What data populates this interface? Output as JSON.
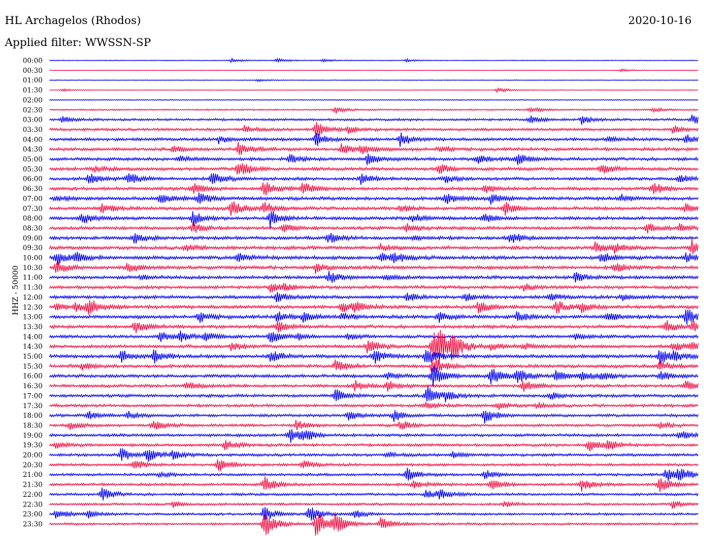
{
  "header": {
    "station": "HL Archagelos (Rhodos)",
    "date": "2020-10-16",
    "filter": "Applied filter: WWSSN-SP"
  },
  "chart_data": {
    "type": "line",
    "title": "HL Archagelos (Rhodos)",
    "subtitle": "Applied filter: WWSSN-SP",
    "date": "2020-10-16",
    "ylabel": "HHZ - 50000",
    "xlabel": "",
    "grid": false,
    "legend": "none",
    "row_labels": [
      "00:00",
      "00:30",
      "01:00",
      "01:30",
      "02:00",
      "02:30",
      "03:00",
      "03:30",
      "04:00",
      "04:30",
      "05:00",
      "05:30",
      "06:00",
      "06:30",
      "07:00",
      "07:30",
      "08:00",
      "08:30",
      "09:00",
      "09:30",
      "10:00",
      "10:30",
      "11:00",
      "11:30",
      "12:00",
      "12:30",
      "13:00",
      "13:30",
      "14:00",
      "14:30",
      "15:00",
      "15:30",
      "16:00",
      "16:30",
      "17:00",
      "17:30",
      "18:00",
      "18:30",
      "19:00",
      "19:30",
      "20:00",
      "20:30",
      "21:00",
      "21:30",
      "22:00",
      "22:30",
      "23:00",
      "23:30"
    ],
    "trace_colors": [
      "#0000ee",
      "#ee1144"
    ],
    "noise_levels": [
      0.6,
      0.4,
      0.5,
      0.4,
      0.7,
      1.2,
      1.8,
      2.2,
      2.4,
      2.5,
      2.5,
      2.6,
      2.5,
      2.6,
      2.6,
      2.6,
      2.6,
      2.6,
      2.6,
      2.7,
      2.8,
      2.8,
      2.6,
      2.5,
      2.6,
      2.7,
      2.7,
      2.6,
      2.4,
      2.6,
      2.7,
      2.6,
      2.5,
      2.4,
      2.4,
      2.3,
      2.2,
      2.2,
      2.3,
      2.2,
      2.2,
      2.1,
      2.1,
      2.1,
      2.0,
      1.9,
      1.9,
      1.8
    ],
    "events": [
      [
        [
          0.28,
          3
        ],
        [
          0.35,
          3
        ],
        [
          0.42,
          2
        ],
        [
          0.55,
          2
        ]
      ],
      [
        [
          0.88,
          2
        ]
      ],
      [
        [
          0.32,
          2
        ]
      ],
      [
        [
          0.02,
          2
        ],
        [
          0.69,
          4
        ]
      ],
      [],
      [
        [
          0.44,
          5
        ],
        [
          0.74,
          4
        ],
        [
          0.93,
          3
        ]
      ],
      [
        [
          0.02,
          4
        ],
        [
          0.74,
          6
        ],
        [
          0.82,
          6
        ],
        [
          0.99,
          7
        ]
      ],
      [
        [
          0.3,
          5
        ],
        [
          0.41,
          12
        ],
        [
          0.46,
          5
        ],
        [
          0.96,
          6
        ]
      ],
      [
        [
          0.26,
          6
        ],
        [
          0.41,
          10
        ],
        [
          0.54,
          9
        ],
        [
          0.86,
          4
        ],
        [
          0.98,
          7
        ]
      ],
      [
        [
          0.19,
          4
        ],
        [
          0.29,
          10
        ],
        [
          0.45,
          8
        ],
        [
          0.48,
          7
        ],
        [
          0.6,
          4
        ]
      ],
      [
        [
          0.2,
          4
        ],
        [
          0.37,
          6
        ],
        [
          0.49,
          10
        ],
        [
          0.66,
          7
        ],
        [
          0.72,
          9
        ]
      ],
      [
        [
          0.07,
          3
        ],
        [
          0.29,
          14
        ],
        [
          0.6,
          8
        ],
        [
          0.85,
          7
        ]
      ],
      [
        [
          0.06,
          8
        ],
        [
          0.12,
          9
        ],
        [
          0.25,
          9
        ],
        [
          0.48,
          8
        ],
        [
          0.61,
          5
        ],
        [
          0.97,
          5
        ]
      ],
      [
        [
          0.22,
          8
        ],
        [
          0.33,
          11
        ],
        [
          0.39,
          9
        ],
        [
          0.67,
          7
        ],
        [
          0.93,
          10
        ]
      ],
      [
        [
          0.01,
          4
        ],
        [
          0.17,
          8
        ],
        [
          0.23,
          9
        ],
        [
          0.61,
          8
        ],
        [
          0.68,
          7
        ],
        [
          0.88,
          6
        ]
      ],
      [
        [
          0.08,
          8
        ],
        [
          0.28,
          12
        ],
        [
          0.33,
          9
        ],
        [
          0.54,
          5
        ],
        [
          0.7,
          10
        ],
        [
          0.98,
          6
        ]
      ],
      [
        [
          0.05,
          8
        ],
        [
          0.22,
          11
        ],
        [
          0.34,
          12
        ],
        [
          0.56,
          7
        ],
        [
          0.67,
          6
        ]
      ],
      [
        [
          0.22,
          7
        ],
        [
          0.36,
          6
        ],
        [
          0.55,
          6
        ],
        [
          0.92,
          7
        ],
        [
          0.97,
          5
        ]
      ],
      [
        [
          0.13,
          8
        ],
        [
          0.43,
          8
        ],
        [
          0.56,
          3
        ],
        [
          0.71,
          9
        ]
      ],
      [
        [
          0.21,
          6
        ],
        [
          0.51,
          5
        ],
        [
          0.84,
          9
        ],
        [
          0.87,
          7
        ],
        [
          0.99,
          12
        ]
      ],
      [
        [
          0.01,
          10
        ],
        [
          0.04,
          6
        ],
        [
          0.29,
          8
        ],
        [
          0.51,
          8
        ],
        [
          0.53,
          6
        ],
        [
          0.85,
          8
        ],
        [
          0.98,
          7
        ]
      ],
      [
        [
          0.01,
          9
        ],
        [
          0.12,
          7
        ],
        [
          0.41,
          7
        ],
        [
          0.87,
          8
        ]
      ],
      [
        [
          0.14,
          3
        ],
        [
          0.43,
          9
        ],
        [
          0.52,
          3
        ],
        [
          0.81,
          9
        ]
      ],
      [
        [
          0.34,
          7
        ],
        [
          0.36,
          5
        ],
        [
          0.73,
          5
        ]
      ],
      [
        [
          0.35,
          7
        ],
        [
          0.55,
          7
        ],
        [
          0.64,
          5
        ],
        [
          0.77,
          5
        ],
        [
          0.88,
          5
        ]
      ],
      [
        [
          0.01,
          5
        ],
        [
          0.04,
          7
        ],
        [
          0.06,
          12
        ],
        [
          0.45,
          7
        ],
        [
          0.47,
          8
        ],
        [
          0.66,
          10
        ],
        [
          0.78,
          10
        ],
        [
          0.82,
          7
        ]
      ],
      [
        [
          0.23,
          8
        ],
        [
          0.35,
          7
        ],
        [
          0.39,
          7
        ],
        [
          0.45,
          5
        ],
        [
          0.6,
          8
        ],
        [
          0.72,
          7
        ],
        [
          0.86,
          7
        ],
        [
          0.98,
          12
        ]
      ],
      [
        [
          0.13,
          10
        ],
        [
          0.35,
          8
        ],
        [
          0.95,
          9
        ],
        [
          0.99,
          8
        ]
      ],
      [
        [
          0.17,
          8
        ],
        [
          0.2,
          7
        ],
        [
          0.24,
          9
        ],
        [
          0.34,
          9
        ],
        [
          0.38,
          4
        ],
        [
          0.46,
          4
        ],
        [
          0.81,
          5
        ]
      ],
      [
        [
          0.28,
          6
        ],
        [
          0.49,
          12
        ],
        [
          0.59,
          22
        ],
        [
          0.6,
          18
        ],
        [
          0.62,
          16
        ],
        [
          0.68,
          5
        ],
        [
          0.73,
          5
        ],
        [
          0.96,
          7
        ],
        [
          0.99,
          5
        ]
      ],
      [
        [
          0.11,
          10
        ],
        [
          0.16,
          10
        ],
        [
          0.34,
          10
        ],
        [
          0.5,
          11
        ],
        [
          0.58,
          16
        ],
        [
          0.94,
          10
        ],
        [
          0.96,
          6
        ]
      ],
      [
        [
          0.05,
          5
        ],
        [
          0.44,
          8
        ],
        [
          0.59,
          15
        ],
        [
          0.94,
          7
        ]
      ],
      [
        [
          0.52,
          6
        ],
        [
          0.59,
          16
        ],
        [
          0.68,
          14
        ],
        [
          0.72,
          11
        ],
        [
          0.78,
          9
        ],
        [
          0.82,
          7
        ],
        [
          0.85,
          7
        ],
        [
          0.94,
          7
        ]
      ],
      [
        [
          0.21,
          6
        ],
        [
          0.47,
          7
        ],
        [
          0.52,
          7
        ],
        [
          0.73,
          9
        ],
        [
          0.98,
          7
        ]
      ],
      [
        [
          0.44,
          9
        ],
        [
          0.58,
          15
        ],
        [
          0.61,
          6
        ],
        [
          0.77,
          5
        ]
      ],
      [
        [
          0.58,
          5
        ],
        [
          0.69,
          5
        ],
        [
          0.75,
          4
        ]
      ],
      [
        [
          0.06,
          6
        ],
        [
          0.12,
          6
        ],
        [
          0.46,
          8
        ],
        [
          0.53,
          9
        ],
        [
          0.67,
          11
        ]
      ],
      [
        [
          0.03,
          6
        ],
        [
          0.16,
          7
        ],
        [
          0.38,
          7
        ],
        [
          0.54,
          7
        ],
        [
          0.94,
          4
        ]
      ],
      [
        [
          0.37,
          11
        ],
        [
          0.39,
          9
        ],
        [
          0.97,
          7
        ]
      ],
      [
        [
          0.01,
          5
        ],
        [
          0.27,
          7
        ],
        [
          0.83,
          10
        ],
        [
          0.86,
          7
        ]
      ],
      [
        [
          0.11,
          10
        ],
        [
          0.15,
          10
        ],
        [
          0.19,
          6
        ],
        [
          0.52,
          4
        ],
        [
          0.62,
          4
        ]
      ],
      [
        [
          0.13,
          8
        ],
        [
          0.26,
          10
        ],
        [
          0.39,
          6
        ]
      ],
      [
        [
          0.17,
          4
        ],
        [
          0.55,
          9
        ],
        [
          0.67,
          7
        ],
        [
          0.95,
          10
        ],
        [
          0.97,
          10
        ]
      ],
      [
        [
          0.33,
          12
        ],
        [
          0.56,
          7
        ],
        [
          0.68,
          10
        ],
        [
          0.82,
          10
        ],
        [
          0.94,
          12
        ]
      ],
      [
        [
          0.08,
          10
        ],
        [
          0.58,
          7
        ],
        [
          0.6,
          7
        ]
      ],
      [
        [
          0.19,
          4
        ],
        [
          0.7,
          4
        ],
        [
          0.96,
          6
        ]
      ],
      [
        [
          0.01,
          8
        ],
        [
          0.06,
          5
        ],
        [
          0.33,
          12
        ],
        [
          0.4,
          12
        ],
        [
          0.47,
          6
        ]
      ],
      [
        [
          0.33,
          22
        ],
        [
          0.41,
          20
        ],
        [
          0.44,
          14
        ],
        [
          0.51,
          10
        ]
      ]
    ]
  }
}
